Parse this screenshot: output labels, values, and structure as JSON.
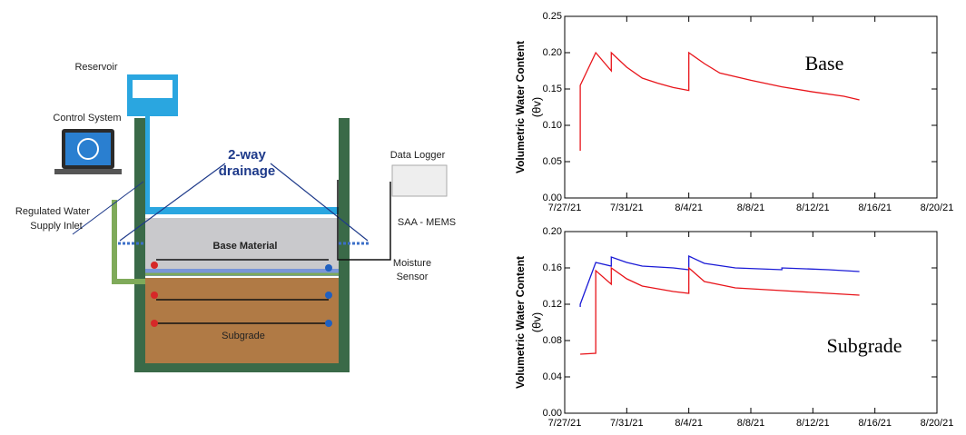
{
  "diagram": {
    "reservoir": "Reservoir",
    "control_system": "Control System",
    "inlet": [
      "Regulated Water",
      "Supply Inlet"
    ],
    "drainage": [
      "2-way",
      "drainage"
    ],
    "data_logger": "Data Logger",
    "saa": "SAA - MEMS",
    "base_material": "Base Material",
    "moisture_sensor": [
      "Moisture",
      "Sensor"
    ],
    "subgrade": "Subgrade"
  },
  "chart_data": [
    {
      "type": "line",
      "ylabel": "Volumetric Water Content",
      "ylabel_unit": "(θv)",
      "annotation": "Base",
      "xlim": [
        "7/27/21",
        "8/20/21"
      ],
      "xticks": [
        "7/27/21",
        "7/31/21",
        "8/4/21",
        "8/8/21",
        "8/12/21",
        "8/16/21",
        "8/20/21"
      ],
      "ylim": [
        0,
        0.25
      ],
      "yticks": [
        {
          "value": 0,
          "label": "0.00"
        },
        0.05,
        {
          "value": 0.1,
          "label": "0.10"
        },
        0.15,
        {
          "value": 0.2,
          "label": "0.20"
        },
        0.25
      ],
      "series": [
        {
          "color": "#e8141a",
          "x": [
            "7/28/21",
            "7/28/21",
            "7/29/21",
            "7/30/21",
            "7/30/21",
            "7/31/21",
            "8/1/21",
            "8/2/21",
            "8/3/21",
            "8/4/21",
            "8/4/21",
            "8/5/21",
            "8/6/21",
            "8/8/21",
            "8/10/21",
            "8/12/21",
            "8/14/21",
            "8/15/21"
          ],
          "values": [
            0.065,
            0.155,
            0.2,
            0.175,
            0.2,
            0.18,
            0.165,
            0.158,
            0.152,
            0.148,
            0.2,
            0.185,
            0.172,
            0.162,
            0.153,
            0.146,
            0.14,
            0.135
          ]
        }
      ]
    },
    {
      "type": "line",
      "ylabel": "Volumetric Water Content",
      "ylabel_unit": "(θv)",
      "annotation": "Subgrade",
      "xlim": [
        "7/27/21",
        "8/20/21"
      ],
      "xticks": [
        "7/27/21",
        "7/31/21",
        "8/4/21",
        "8/8/21",
        "8/12/21",
        "8/16/21",
        "8/20/21"
      ],
      "ylim": [
        0,
        0.2
      ],
      "yticks": [
        {
          "value": 0,
          "label": "0.00"
        },
        0.04,
        0.08,
        0.12,
        0.16,
        {
          "value": 0.2,
          "label": "0.20"
        }
      ],
      "series": [
        {
          "color": "#1a1ad6",
          "x": [
            "7/28/21",
            "7/28/21",
            "7/29/21",
            "7/30/21",
            "7/30/21",
            "7/31/21",
            "8/1/21",
            "8/3/21",
            "8/4/21",
            "8/4/21",
            "8/5/21",
            "8/7/21",
            "8/10/21",
            "8/10/21",
            "8/13/21",
            "8/15/21"
          ],
          "values": [
            0.117,
            0.12,
            0.166,
            0.162,
            0.172,
            0.166,
            0.162,
            0.16,
            0.158,
            0.173,
            0.165,
            0.16,
            0.158,
            0.16,
            0.158,
            0.156
          ]
        },
        {
          "color": "#e8141a",
          "x": [
            "7/28/21",
            "7/29/21",
            "7/29/21",
            "7/30/21",
            "7/30/21",
            "7/31/21",
            "8/1/21",
            "8/3/21",
            "8/4/21",
            "8/4/21",
            "8/5/21",
            "8/7/21",
            "8/10/21",
            "8/13/21",
            "8/15/21"
          ],
          "values": [
            0.065,
            0.066,
            0.157,
            0.142,
            0.16,
            0.148,
            0.14,
            0.134,
            0.132,
            0.16,
            0.145,
            0.138,
            0.135,
            0.132,
            0.13
          ]
        }
      ]
    }
  ]
}
